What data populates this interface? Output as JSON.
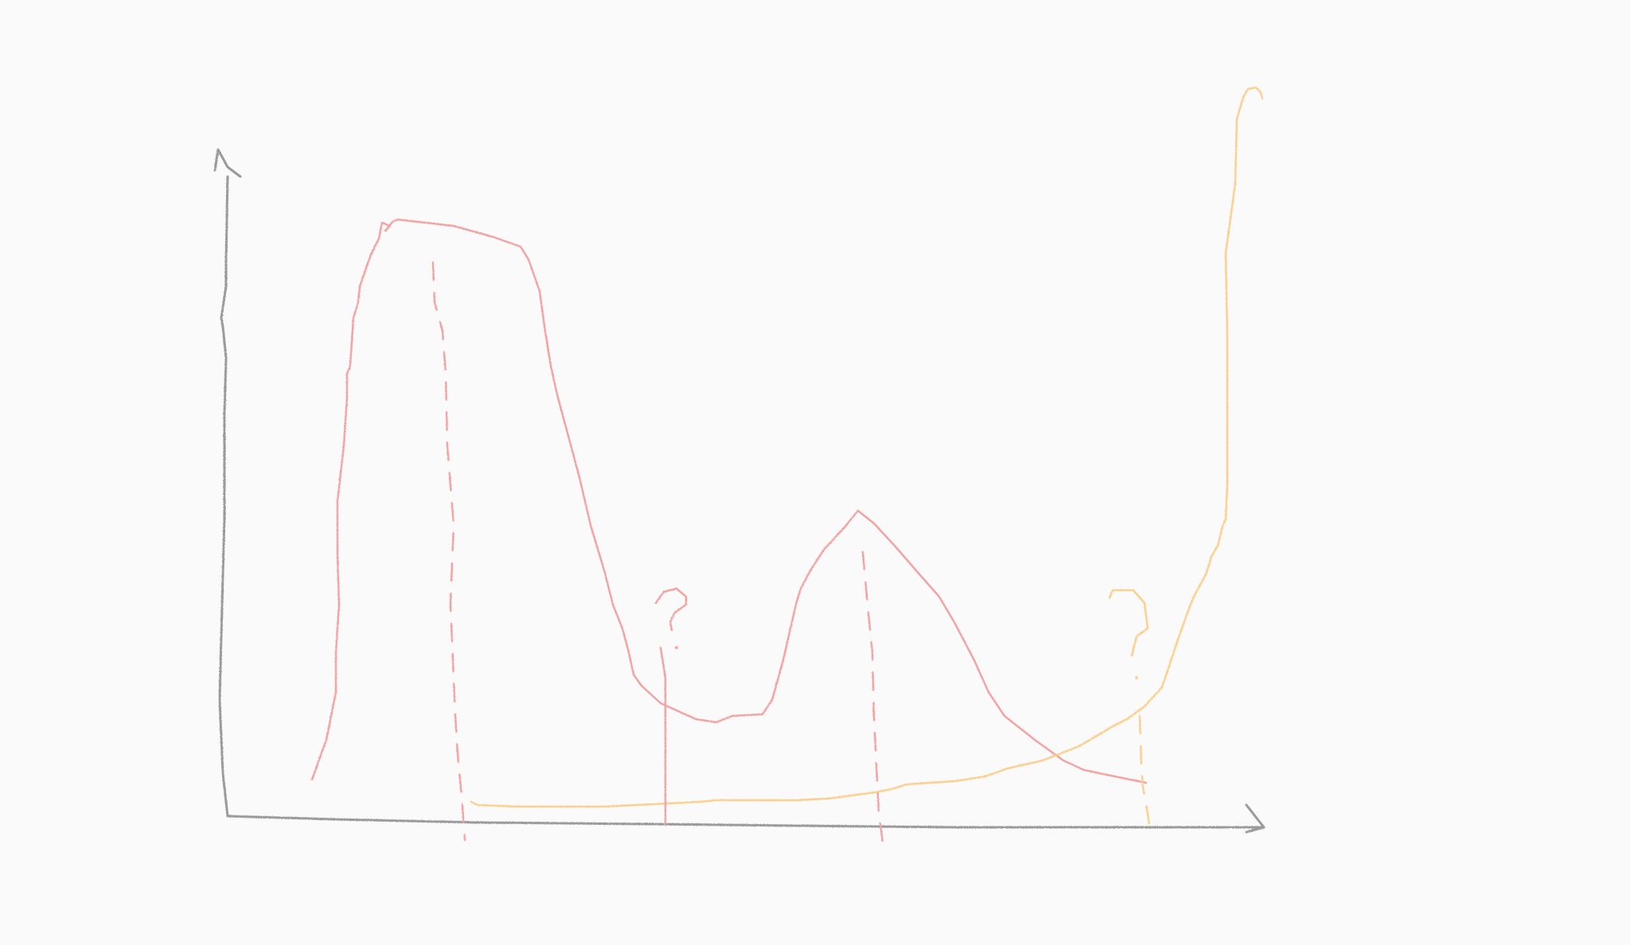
{
  "sketch": {
    "style": "pencil-hand-drawn",
    "axes": {
      "color": "#9a9a9a",
      "arrowheads": true
    },
    "curves": [
      {
        "id": "red-curve",
        "color": "#f2a3a3",
        "shape": "bimodal"
      },
      {
        "id": "orange-curve",
        "color": "#fbcf8f",
        "shape": "rising-exponential"
      }
    ],
    "markers": [
      {
        "id": "red-dashed-peak-1",
        "color": "#f2a3a3",
        "style": "dashed"
      },
      {
        "id": "red-solid-valley",
        "color": "#f2a3a3",
        "style": "solid"
      },
      {
        "id": "red-dashed-peak-2",
        "color": "#f2a3a3",
        "style": "dashed"
      },
      {
        "id": "orange-dashed-marker",
        "color": "#fbcf8f",
        "style": "dashed"
      }
    ],
    "question_marks": [
      {
        "id": "question-mark-red",
        "text": "?",
        "color": "#f2a3a3"
      },
      {
        "id": "question-mark-orange",
        "text": "?",
        "color": "#fbcf8f"
      }
    ]
  }
}
